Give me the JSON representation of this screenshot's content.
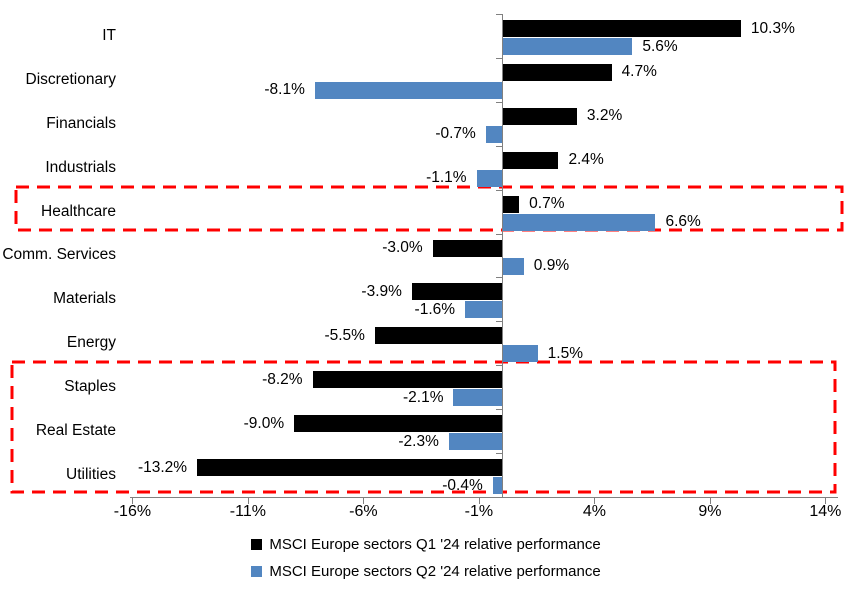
{
  "chart_data": {
    "type": "bar",
    "orientation": "horizontal",
    "title": "",
    "categories": [
      "IT",
      "Discretionary",
      "Financials",
      "Industrials",
      "Healthcare",
      "Comm. Services",
      "Materials",
      "Energy",
      "Staples",
      "Real Estate",
      "Utilities"
    ],
    "series": [
      {
        "name": "MSCI Europe sectors Q1 '24 relative performance",
        "color": "#000000",
        "values": [
          10.3,
          4.7,
          3.2,
          2.4,
          0.7,
          -3.0,
          -3.9,
          -5.5,
          -8.2,
          -9.0,
          -13.2
        ],
        "labels": [
          "10.3%",
          "4.7%",
          "3.2%",
          "2.4%",
          "0.7%",
          "-3.0%",
          "-3.9%",
          "-5.5%",
          "-8.2%",
          "-9.0%",
          "-13.2%"
        ]
      },
      {
        "name": "MSCI Europe sectors Q2 '24 relative performance",
        "color": "#5286C1",
        "values": [
          5.6,
          -8.1,
          -0.7,
          -1.1,
          6.6,
          0.9,
          -1.6,
          1.5,
          -2.1,
          -2.3,
          -0.4
        ],
        "labels": [
          "5.6%",
          "-8.1%",
          "-0.7%",
          "-1.1%",
          "6.6%",
          "0.9%",
          "-1.6%",
          "1.5%",
          "-2.1%",
          "-2.3%",
          "-0.4%"
        ]
      }
    ],
    "x_axis": {
      "min": -16,
      "max": 14,
      "unit": "%",
      "tick_values": [
        -16,
        -11,
        -6,
        -1,
        4,
        9,
        14
      ],
      "tick_labels": [
        "-16%",
        "-11%",
        "-6%",
        "-1%",
        "4%",
        "9%",
        "14%"
      ]
    },
    "legend": {
      "position": "bottom"
    },
    "annotations": {
      "highlight_boxes": [
        {
          "from_category": "Healthcare",
          "to_category": "Healthcare",
          "color": "#FF0000",
          "style": "dashed"
        },
        {
          "from_category": "Staples",
          "to_category": "Utilities",
          "color": "#FF0000",
          "style": "dashed"
        }
      ]
    },
    "colors": {
      "q1": "#000000",
      "q2": "#5286C1",
      "highlight": "#FF0000",
      "axis": "#808080"
    },
    "grid": false
  }
}
